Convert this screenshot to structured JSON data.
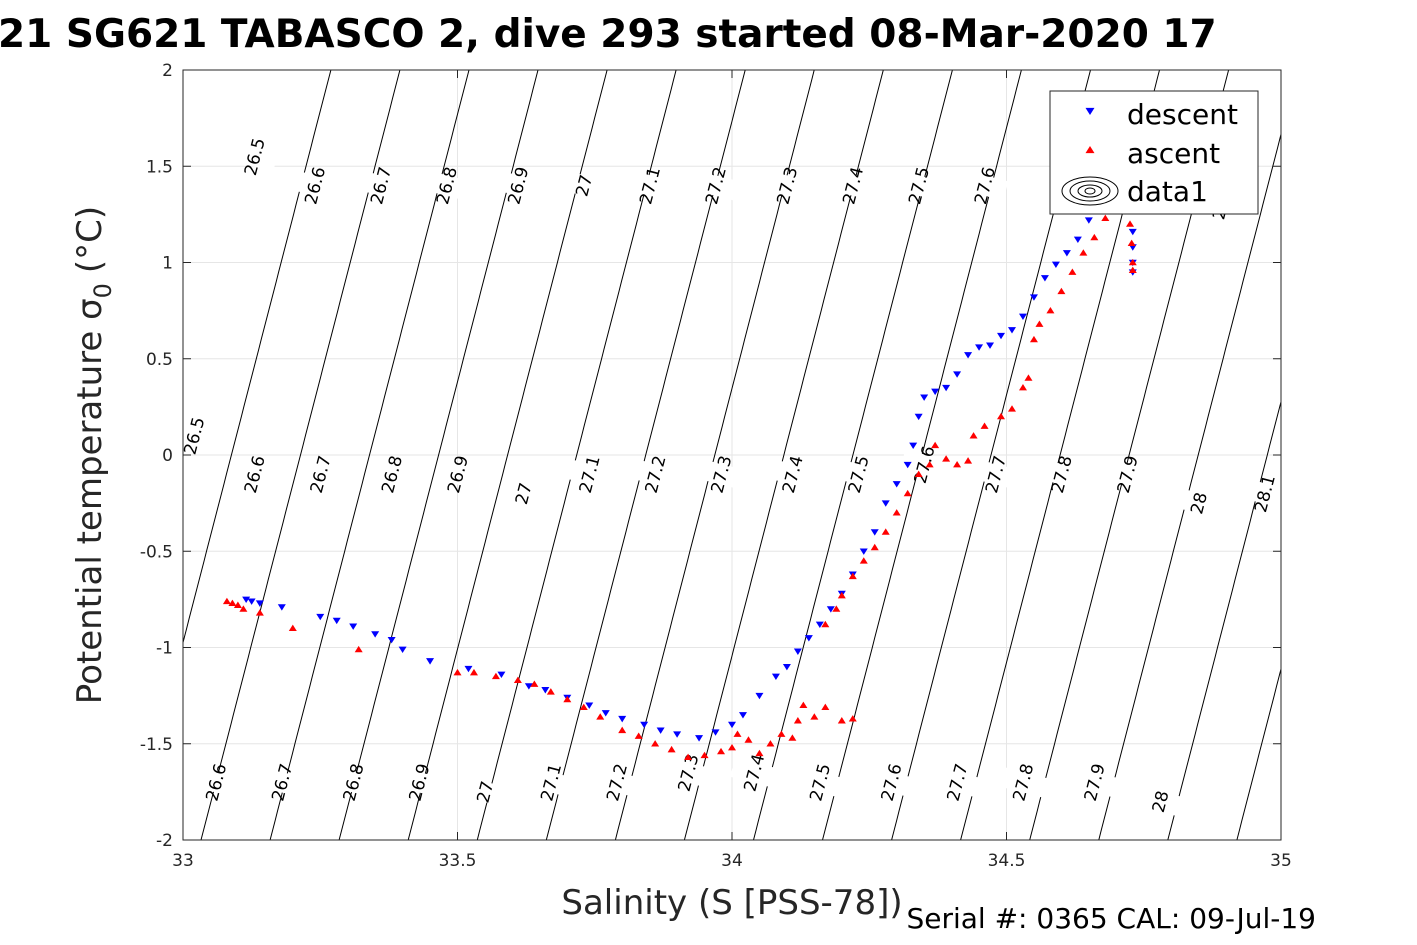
{
  "chart_data": {
    "type": "scatter",
    "title": "21 SG621 TABASCO 2, dive 293 started 08-Mar-2020 17",
    "xlabel": "Salinity (S [PSS-78])",
    "ylabel_main": "Potential temperature σ",
    "ylabel_sub": "0",
    "ylabel_unit": "(°C)",
    "footer": "Serial #: 0365  CAL: 09-Jul-19",
    "xlim": [
      33,
      35
    ],
    "ylim": [
      -2,
      2
    ],
    "xticks": [
      33,
      33.5,
      34,
      34.5,
      35
    ],
    "xtick_labels": [
      "33",
      "33.5",
      "34",
      "34.5",
      "35"
    ],
    "yticks": [
      2,
      1.5,
      1,
      0.5,
      0,
      -0.5,
      -1,
      -1.5,
      -2
    ],
    "ytick_labels": [
      "2",
      "1.5",
      "1",
      "0.5",
      "0",
      "-0.5",
      "-1",
      "-1.5",
      "-2"
    ],
    "grid": true,
    "legend_position": "top-right",
    "contours": {
      "levels": [
        26.5,
        26.6,
        26.7,
        26.8,
        26.9,
        27,
        27.1,
        27.2,
        27.3,
        27.4,
        27.5,
        27.6,
        27.7,
        27.8,
        27.9,
        28,
        28.1
      ],
      "labels": [
        {
          "text": "26.5",
          "s": 33.13,
          "t": 1.55
        },
        {
          "text": "26.6",
          "s": 33.24,
          "t": 1.4
        },
        {
          "text": "26.7",
          "s": 33.36,
          "t": 1.4
        },
        {
          "text": "26.8",
          "s": 33.48,
          "t": 1.4
        },
        {
          "text": "26.9",
          "s": 33.61,
          "t": 1.4
        },
        {
          "text": "27",
          "s": 33.73,
          "t": 1.4
        },
        {
          "text": "27.1",
          "s": 33.85,
          "t": 1.4
        },
        {
          "text": "27.2",
          "s": 33.97,
          "t": 1.4
        },
        {
          "text": "27.3",
          "s": 34.1,
          "t": 1.4
        },
        {
          "text": "27.4",
          "s": 34.22,
          "t": 1.4
        },
        {
          "text": "27.5",
          "s": 34.34,
          "t": 1.4
        },
        {
          "text": "27.6",
          "s": 34.46,
          "t": 1.4
        },
        {
          "text": "28",
          "s": 34.89,
          "t": 1.28
        },
        {
          "text": "26.5",
          "s": 33.02,
          "t": 0.1
        },
        {
          "text": "26.6",
          "s": 33.13,
          "t": -0.1
        },
        {
          "text": "26.7",
          "s": 33.25,
          "t": -0.1
        },
        {
          "text": "26.8",
          "s": 33.38,
          "t": -0.1
        },
        {
          "text": "26.9",
          "s": 33.5,
          "t": -0.1
        },
        {
          "text": "27",
          "s": 33.62,
          "t": -0.2
        },
        {
          "text": "27.1",
          "s": 33.74,
          "t": -0.1
        },
        {
          "text": "27.2",
          "s": 33.86,
          "t": -0.1
        },
        {
          "text": "27.3",
          "s": 33.98,
          "t": -0.1
        },
        {
          "text": "27.4",
          "s": 34.11,
          "t": -0.1
        },
        {
          "text": "27.5",
          "s": 34.23,
          "t": -0.1
        },
        {
          "text": "27.6",
          "s": 34.35,
          "t": -0.05
        },
        {
          "text": "27.7",
          "s": 34.48,
          "t": -0.1
        },
        {
          "text": "27.8",
          "s": 34.6,
          "t": -0.1
        },
        {
          "text": "27.9",
          "s": 34.72,
          "t": -0.1
        },
        {
          "text": "28",
          "s": 34.85,
          "t": -0.25
        },
        {
          "text": "28.1",
          "s": 34.97,
          "t": -0.2
        },
        {
          "text": "26.6",
          "s": 33.06,
          "t": -1.7
        },
        {
          "text": "26.7",
          "s": 33.18,
          "t": -1.7
        },
        {
          "text": "26.8",
          "s": 33.31,
          "t": -1.7
        },
        {
          "text": "26.9",
          "s": 33.43,
          "t": -1.7
        },
        {
          "text": "27",
          "s": 33.55,
          "t": -1.75
        },
        {
          "text": "27.1",
          "s": 33.67,
          "t": -1.7
        },
        {
          "text": "27.2",
          "s": 33.79,
          "t": -1.7
        },
        {
          "text": "27.3",
          "s": 33.92,
          "t": -1.65
        },
        {
          "text": "27.4",
          "s": 34.04,
          "t": -1.65
        },
        {
          "text": "27.5",
          "s": 34.16,
          "t": -1.7
        },
        {
          "text": "27.6",
          "s": 34.29,
          "t": -1.7
        },
        {
          "text": "27.7",
          "s": 34.41,
          "t": -1.7
        },
        {
          "text": "27.8",
          "s": 34.53,
          "t": -1.7
        },
        {
          "text": "27.9",
          "s": 34.66,
          "t": -1.7
        },
        {
          "text": "28",
          "s": 34.78,
          "t": -1.8
        }
      ]
    },
    "series": [
      {
        "name": "descent",
        "marker": "triangle-down",
        "color": "#0000ff",
        "points": [
          [
            33.115,
            -0.75
          ],
          [
            33.125,
            -0.76
          ],
          [
            33.14,
            -0.77
          ],
          [
            33.18,
            -0.79
          ],
          [
            33.25,
            -0.84
          ],
          [
            33.28,
            -0.86
          ],
          [
            33.31,
            -0.89
          ],
          [
            33.35,
            -0.93
          ],
          [
            33.38,
            -0.96
          ],
          [
            33.4,
            -1.01
          ],
          [
            33.45,
            -1.07
          ],
          [
            33.52,
            -1.11
          ],
          [
            33.58,
            -1.14
          ],
          [
            33.63,
            -1.2
          ],
          [
            33.66,
            -1.22
          ],
          [
            33.7,
            -1.26
          ],
          [
            33.74,
            -1.3
          ],
          [
            33.77,
            -1.34
          ],
          [
            33.8,
            -1.37
          ],
          [
            33.84,
            -1.4
          ],
          [
            33.87,
            -1.43
          ],
          [
            33.9,
            -1.45
          ],
          [
            33.94,
            -1.47
          ],
          [
            33.97,
            -1.44
          ],
          [
            34.0,
            -1.4
          ],
          [
            34.02,
            -1.35
          ],
          [
            34.05,
            -1.25
          ],
          [
            34.08,
            -1.15
          ],
          [
            34.1,
            -1.1
          ],
          [
            34.12,
            -1.02
          ],
          [
            34.14,
            -0.95
          ],
          [
            34.16,
            -0.88
          ],
          [
            34.18,
            -0.8
          ],
          [
            34.2,
            -0.72
          ],
          [
            34.22,
            -0.62
          ],
          [
            34.24,
            -0.5
          ],
          [
            34.26,
            -0.4
          ],
          [
            34.28,
            -0.25
          ],
          [
            34.3,
            -0.15
          ],
          [
            34.32,
            -0.05
          ],
          [
            34.33,
            0.05
          ],
          [
            34.34,
            0.2
          ],
          [
            34.35,
            0.3
          ],
          [
            34.37,
            0.33
          ],
          [
            34.39,
            0.35
          ],
          [
            34.41,
            0.42
          ],
          [
            34.43,
            0.52
          ],
          [
            34.45,
            0.56
          ],
          [
            34.47,
            0.57
          ],
          [
            34.49,
            0.62
          ],
          [
            34.51,
            0.65
          ],
          [
            34.53,
            0.72
          ],
          [
            34.55,
            0.82
          ],
          [
            34.57,
            0.92
          ],
          [
            34.59,
            0.99
          ],
          [
            34.61,
            1.05
          ],
          [
            34.63,
            1.12
          ],
          [
            34.65,
            1.22
          ],
          [
            34.67,
            1.27
          ],
          [
            34.68,
            1.31
          ],
          [
            34.69,
            1.34
          ],
          [
            34.73,
            1.16
          ],
          [
            34.73,
            1.08
          ],
          [
            34.73,
            1.0
          ],
          [
            34.73,
            0.95
          ]
        ]
      },
      {
        "name": "ascent",
        "marker": "triangle-up",
        "color": "#ff0000",
        "points": [
          [
            33.08,
            -0.76
          ],
          [
            33.09,
            -0.77
          ],
          [
            33.1,
            -0.78
          ],
          [
            33.11,
            -0.8
          ],
          [
            33.14,
            -0.82
          ],
          [
            33.2,
            -0.9
          ],
          [
            33.32,
            -1.01
          ],
          [
            33.5,
            -1.13
          ],
          [
            33.53,
            -1.13
          ],
          [
            33.57,
            -1.15
          ],
          [
            33.61,
            -1.17
          ],
          [
            33.64,
            -1.19
          ],
          [
            33.67,
            -1.23
          ],
          [
            33.7,
            -1.27
          ],
          [
            33.73,
            -1.31
          ],
          [
            33.76,
            -1.36
          ],
          [
            33.8,
            -1.43
          ],
          [
            33.83,
            -1.46
          ],
          [
            33.86,
            -1.5
          ],
          [
            33.89,
            -1.53
          ],
          [
            33.92,
            -1.57
          ],
          [
            33.95,
            -1.56
          ],
          [
            33.98,
            -1.54
          ],
          [
            34.0,
            -1.52
          ],
          [
            34.01,
            -1.45
          ],
          [
            34.03,
            -1.48
          ],
          [
            34.05,
            -1.55
          ],
          [
            34.07,
            -1.5
          ],
          [
            34.09,
            -1.45
          ],
          [
            34.11,
            -1.47
          ],
          [
            34.12,
            -1.38
          ],
          [
            34.13,
            -1.3
          ],
          [
            34.15,
            -1.36
          ],
          [
            34.17,
            -1.31
          ],
          [
            34.2,
            -1.38
          ],
          [
            34.22,
            -1.37
          ],
          [
            34.17,
            -0.88
          ],
          [
            34.19,
            -0.8
          ],
          [
            34.2,
            -0.73
          ],
          [
            34.22,
            -0.63
          ],
          [
            34.24,
            -0.55
          ],
          [
            34.26,
            -0.48
          ],
          [
            34.28,
            -0.4
          ],
          [
            34.3,
            -0.3
          ],
          [
            34.32,
            -0.2
          ],
          [
            34.34,
            -0.1
          ],
          [
            34.36,
            -0.05
          ],
          [
            34.37,
            0.05
          ],
          [
            34.39,
            -0.02
          ],
          [
            34.41,
            -0.05
          ],
          [
            34.43,
            -0.03
          ],
          [
            34.44,
            0.1
          ],
          [
            34.46,
            0.15
          ],
          [
            34.49,
            0.2
          ],
          [
            34.51,
            0.24
          ],
          [
            34.53,
            0.35
          ],
          [
            34.54,
            0.4
          ],
          [
            34.55,
            0.6
          ],
          [
            34.56,
            0.68
          ],
          [
            34.58,
            0.75
          ],
          [
            34.6,
            0.85
          ],
          [
            34.62,
            0.95
          ],
          [
            34.64,
            1.05
          ],
          [
            34.66,
            1.13
          ],
          [
            34.68,
            1.23
          ],
          [
            34.72,
            1.3
          ],
          [
            34.725,
            1.2
          ],
          [
            34.728,
            1.1
          ],
          [
            34.73,
            1.0
          ],
          [
            34.73,
            0.96
          ]
        ]
      }
    ],
    "legend": [
      {
        "label": "descent",
        "marker": "triangle-down",
        "color": "#0000ff"
      },
      {
        "label": "ascent",
        "marker": "triangle-up",
        "color": "#ff0000"
      },
      {
        "label": "data1",
        "marker": "contour-icon",
        "color": "#000000"
      }
    ]
  }
}
